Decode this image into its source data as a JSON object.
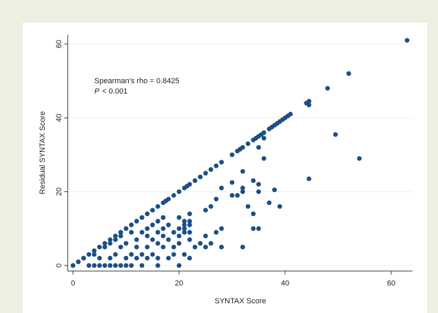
{
  "chart_data": {
    "type": "scatter",
    "x_label": "SYNTAX Score",
    "y_label": "Residual SYNTAX Score",
    "annotation": "Spearman's rho = 0.8425",
    "p_annotation": {
      "symbol": "P",
      "text": "< 0.001"
    },
    "color": "#1d4f85",
    "grid": true,
    "xlim": [
      -1,
      64
    ],
    "ylim": [
      -1.5,
      62.5
    ],
    "xticks": [
      0,
      20,
      40,
      60
    ],
    "yticks": [
      0,
      20,
      40,
      60
    ],
    "x": [
      0,
      1,
      2,
      3,
      4,
      5,
      6,
      7,
      8,
      9,
      10,
      11,
      12,
      13,
      14,
      15,
      16,
      17,
      17.5,
      18,
      19,
      20,
      21,
      21.5,
      22,
      23,
      24,
      25,
      26,
      27,
      28,
      30,
      31,
      31.5,
      32,
      33,
      34,
      34.5,
      35,
      35.5,
      36,
      37,
      37.5,
      38,
      38.5,
      39,
      39.5,
      40,
      40.5,
      41,
      44,
      44.5,
      44.5,
      48,
      52,
      63,
      3,
      4,
      5,
      6,
      7,
      8,
      9,
      10,
      11,
      13,
      16,
      20,
      2,
      5,
      7,
      10,
      12,
      14,
      16,
      18,
      22,
      4,
      8,
      11,
      13,
      15,
      19,
      21,
      6,
      9,
      12,
      14,
      17,
      19,
      23,
      25,
      28,
      32,
      7,
      10,
      16,
      20,
      24,
      26,
      8,
      12,
      15,
      18,
      22,
      9,
      14,
      17,
      20,
      25,
      11,
      13,
      16,
      19,
      21,
      22,
      27,
      14,
      17,
      20,
      21,
      28,
      34,
      35,
      15,
      18,
      21,
      22,
      16,
      21,
      22,
      17,
      20,
      22,
      34,
      25,
      26,
      33,
      39,
      27,
      30,
      31,
      32,
      35,
      28,
      32,
      35,
      34,
      38,
      30,
      32,
      37,
      36,
      36,
      35,
      44.5,
      49.5,
      54
    ],
    "y": [
      0,
      1,
      2,
      3,
      4,
      5,
      6,
      7,
      8,
      9,
      10,
      11,
      12,
      13,
      14,
      15,
      16,
      17,
      17.5,
      18,
      19,
      20,
      21,
      21.5,
      22,
      23,
      24,
      25,
      26,
      27,
      28,
      30,
      31,
      31.5,
      32,
      33,
      34,
      34.5,
      35,
      35.5,
      36,
      37,
      37.5,
      38,
      38.5,
      39,
      39.5,
      40,
      40.5,
      41,
      44,
      44.5,
      43.5,
      48,
      52,
      61,
      0,
      0,
      0,
      0,
      0,
      0,
      0,
      0,
      0,
      0,
      0,
      0,
      2,
      2,
      2,
      2,
      2,
      2,
      2,
      2,
      2,
      3,
      3,
      3,
      3,
      3,
      3,
      3,
      5,
      5,
      5,
      5,
      5,
      5,
      5,
      5,
      5,
      5,
      6,
      6,
      6,
      6,
      6,
      6,
      7,
      7,
      7,
      7,
      7,
      8,
      8,
      8,
      8,
      8,
      9,
      9,
      9,
      9,
      9,
      9,
      9,
      10,
      10,
      10,
      10,
      10,
      10,
      10,
      11,
      11,
      11,
      11,
      12,
      12,
      12,
      13,
      13,
      14,
      14,
      15,
      16,
      16,
      16,
      18,
      19,
      19,
      20,
      20,
      21,
      21,
      22,
      23,
      20.5,
      22.5,
      25.5,
      17,
      29,
      34.5,
      32,
      23.5,
      35.5,
      29
    ]
  }
}
